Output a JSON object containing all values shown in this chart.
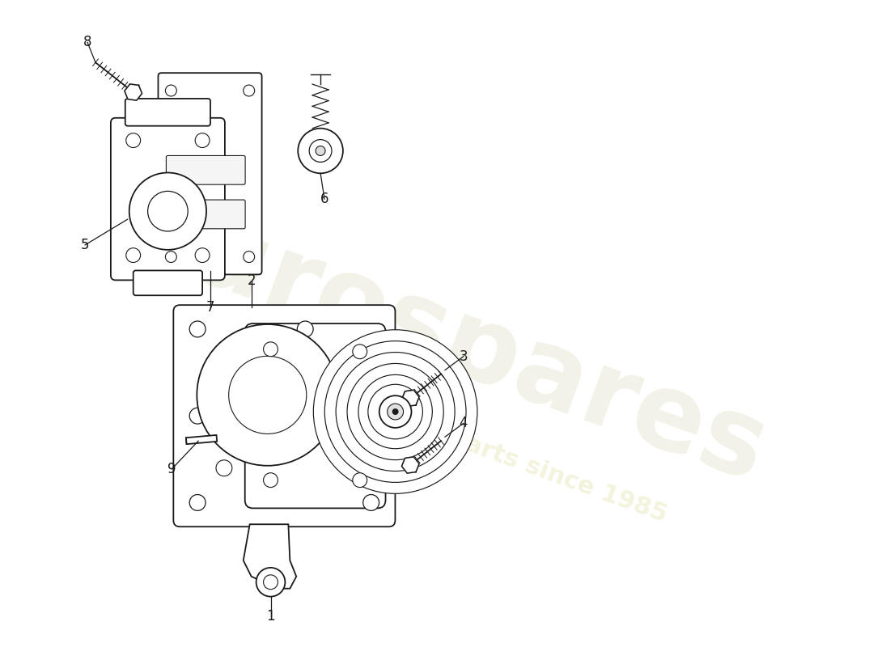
{
  "background_color": "#ffffff",
  "line_color": "#1a1a1a",
  "line_width": 1.3,
  "label_fontsize": 12,
  "wm_color1": "#e8e8d5",
  "wm_color2": "#eeeecc",
  "wm_fontsize1": 95,
  "wm_fontsize2": 22
}
